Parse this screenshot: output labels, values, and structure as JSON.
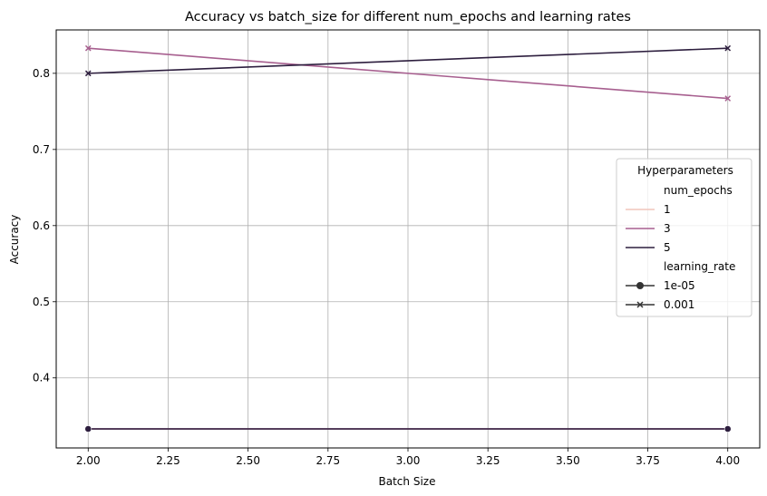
{
  "chart_data": {
    "type": "line",
    "title": "Accuracy vs batch_size for different num_epochs and learning rates",
    "xlabel": "Batch Size",
    "ylabel": "Accuracy",
    "xlim": [
      1.9,
      4.1
    ],
    "ylim": [
      0.308,
      0.857
    ],
    "xticks": [
      2.0,
      2.25,
      2.5,
      2.75,
      3.0,
      3.25,
      3.5,
      3.75,
      4.0
    ],
    "xtick_labels": [
      "2.00",
      "2.25",
      "2.50",
      "2.75",
      "3.00",
      "3.25",
      "3.50",
      "3.75",
      "4.00"
    ],
    "yticks": [
      0.4,
      0.5,
      0.6,
      0.7,
      0.8
    ],
    "ytick_labels": [
      "0.4",
      "0.5",
      "0.6",
      "0.7",
      "0.8"
    ],
    "grid": true,
    "legend_placement": "center-right",
    "legend": {
      "title": "Hyperparameters",
      "hue_title": "num_epochs",
      "hue_entries": [
        {
          "label": "1",
          "color": "#f0c5bc"
        },
        {
          "label": "3",
          "color": "#a75f8f"
        },
        {
          "label": "5",
          "color": "#2d1e3e"
        }
      ],
      "style_title": "learning_rate",
      "style_entries": [
        {
          "label": "1e-05",
          "marker": "circle"
        },
        {
          "label": "0.001",
          "marker": "x"
        }
      ]
    },
    "series": [
      {
        "num_epochs": "1",
        "learning_rate": "1e-05",
        "color": "#f0c5bc",
        "marker": "circle",
        "x": [
          2.0,
          4.0
        ],
        "y": [
          0.333,
          0.333
        ]
      },
      {
        "num_epochs": "3",
        "learning_rate": "1e-05",
        "color": "#a75f8f",
        "marker": "circle",
        "x": [
          2.0,
          4.0
        ],
        "y": [
          0.333,
          0.333
        ]
      },
      {
        "num_epochs": "5",
        "learning_rate": "1e-05",
        "color": "#2d1e3e",
        "marker": "circle",
        "x": [
          2.0,
          4.0
        ],
        "y": [
          0.333,
          0.333
        ]
      },
      {
        "num_epochs": "3",
        "learning_rate": "0.001",
        "color": "#a75f8f",
        "marker": "x",
        "x": [
          2.0,
          4.0
        ],
        "y": [
          0.833,
          0.767
        ]
      },
      {
        "num_epochs": "5",
        "learning_rate": "0.001",
        "color": "#2d1e3e",
        "marker": "x",
        "x": [
          2.0,
          4.0
        ],
        "y": [
          0.8,
          0.833
        ]
      }
    ]
  }
}
